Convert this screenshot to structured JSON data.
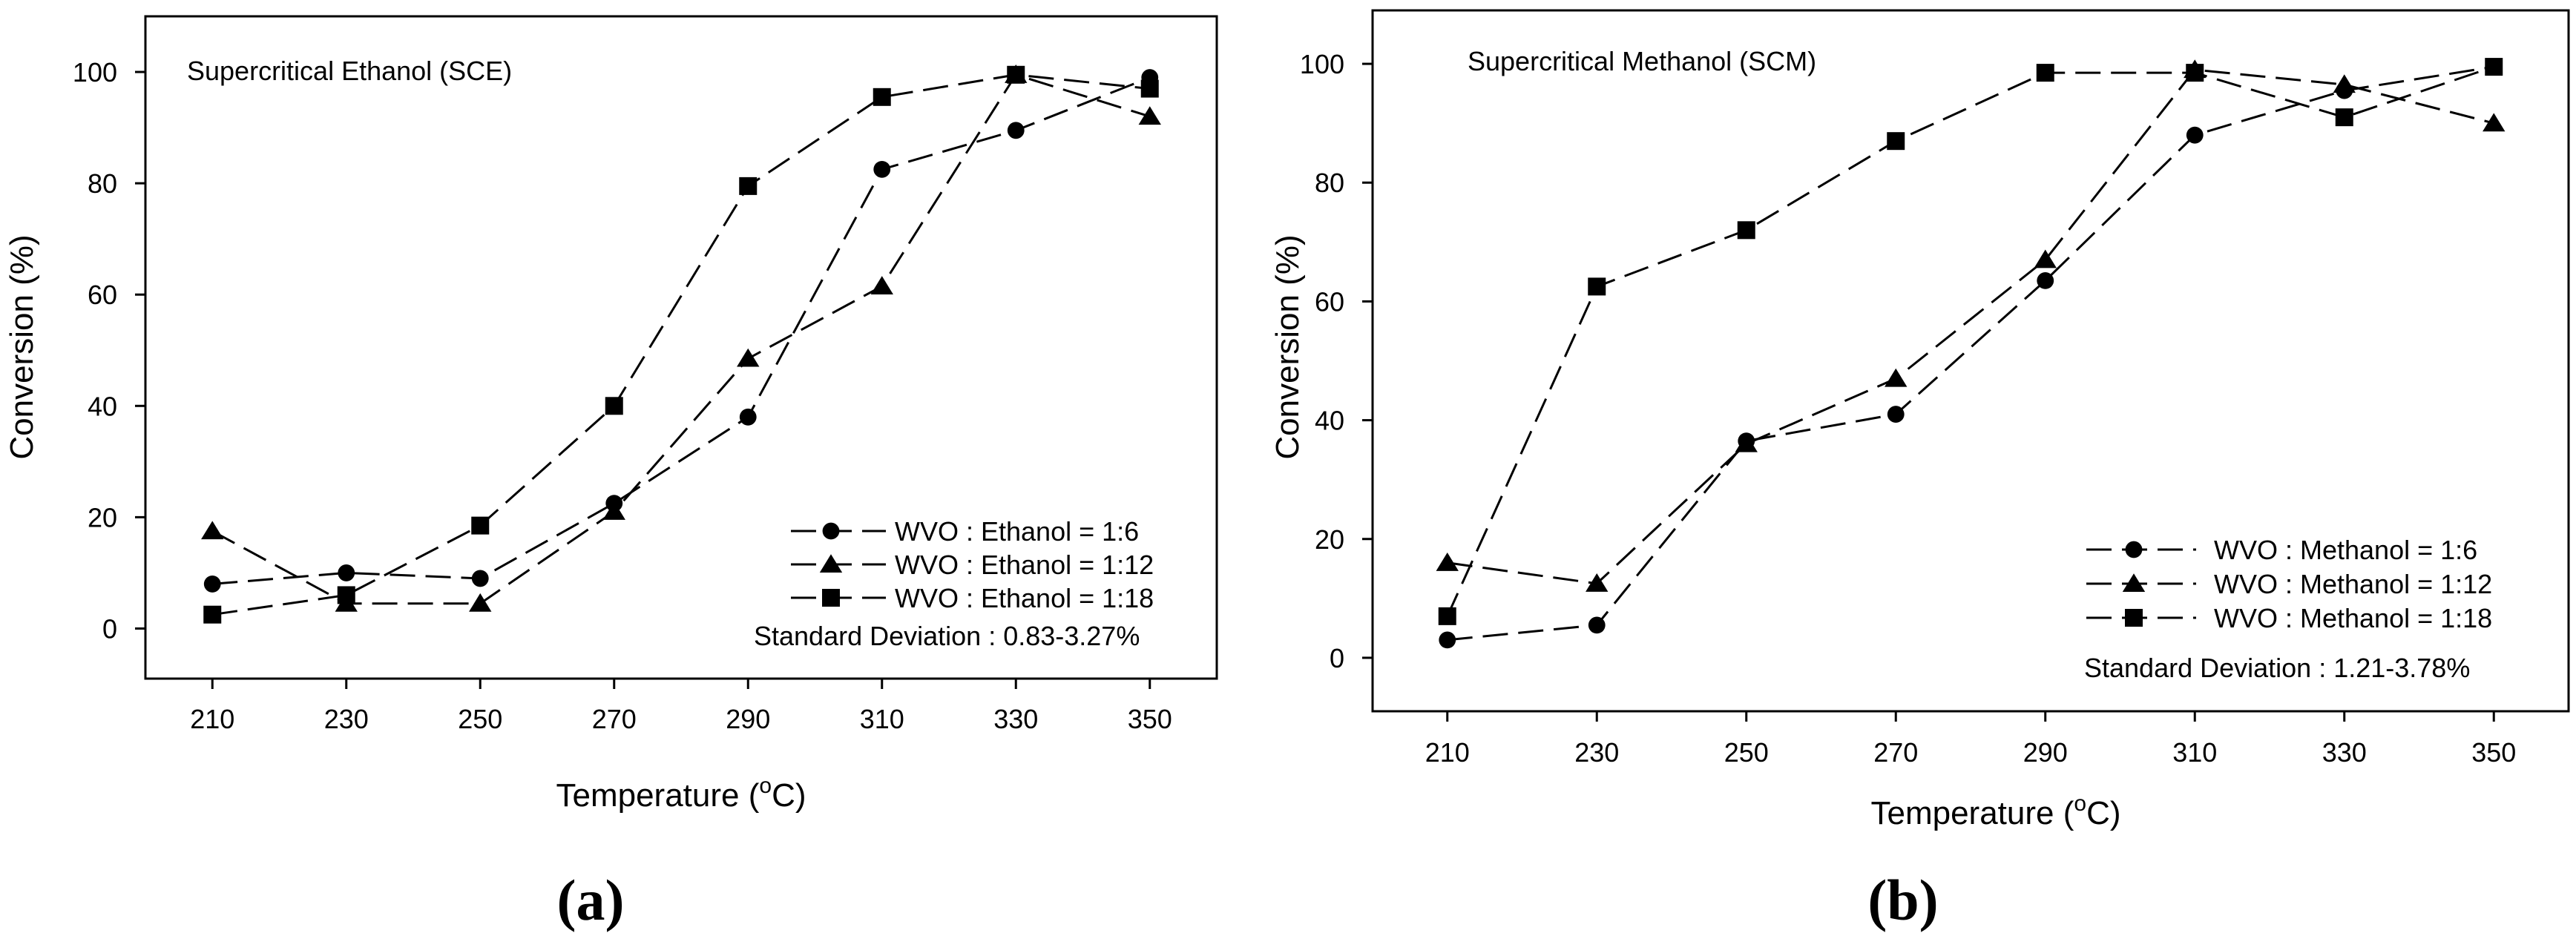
{
  "chart_data": [
    {
      "type": "line",
      "panel_label": "(a)",
      "title": "Supercritical Ethanol (SCE)",
      "xlabel": "Temperature (oC)",
      "xlabel_parts": {
        "pre": "Temperature (",
        "sup": "o",
        "post": "C)"
      },
      "ylabel": "Conversion (%)",
      "categories": [
        210,
        230,
        250,
        270,
        290,
        310,
        330,
        350
      ],
      "xlim": [
        200,
        360
      ],
      "ylim": [
        -9,
        110
      ],
      "yticks": [
        0,
        20,
        40,
        60,
        80,
        100
      ],
      "series": [
        {
          "name": "WVO : Ethanol = 1:6",
          "marker": "circle",
          "values": [
            8,
            10,
            9,
            22.5,
            38,
            82.5,
            89.5,
            99
          ]
        },
        {
          "name": "WVO : Ethanol = 1:12",
          "marker": "triangle",
          "values": [
            17.5,
            4.5,
            4.5,
            21,
            48.5,
            61.5,
            99.5,
            92
          ]
        },
        {
          "name": "WVO : Ethanol = 1:18",
          "marker": "square",
          "values": [
            2.5,
            6,
            18.5,
            40,
            79.5,
            95.5,
            99.5,
            97
          ]
        }
      ],
      "legend_position": "bottom-right",
      "annotation": "Standard Deviation : 0.83-3.27%",
      "grid": false
    },
    {
      "type": "line",
      "panel_label": "(b)",
      "title": "Supercritical Methanol (SCM)",
      "xlabel": "Temperature (oC)",
      "xlabel_parts": {
        "pre": "Temperature (",
        "sup": "o",
        "post": "C)"
      },
      "ylabel": "Conversion (%)",
      "categories": [
        210,
        230,
        250,
        270,
        290,
        310,
        330,
        350
      ],
      "xlim": [
        200,
        360
      ],
      "ylim": [
        -9,
        109
      ],
      "yticks": [
        0,
        20,
        40,
        60,
        80,
        100
      ],
      "series": [
        {
          "name": "WVO : Methanol = 1:6",
          "marker": "circle",
          "values": [
            3,
            5.5,
            36.5,
            41,
            63.5,
            88,
            95.5,
            99.5
          ]
        },
        {
          "name": "WVO : Methanol = 1:12",
          "marker": "triangle",
          "values": [
            16,
            12.5,
            36,
            47,
            67,
            99,
            96.5,
            90
          ]
        },
        {
          "name": "WVO : Methanol = 1:18",
          "marker": "square",
          "values": [
            7,
            62.5,
            72,
            87,
            98.5,
            98.5,
            91,
            99.5
          ]
        }
      ],
      "legend_position": "bottom-right",
      "annotation": "Standard Deviation : 1.21-3.78%",
      "grid": false
    }
  ]
}
